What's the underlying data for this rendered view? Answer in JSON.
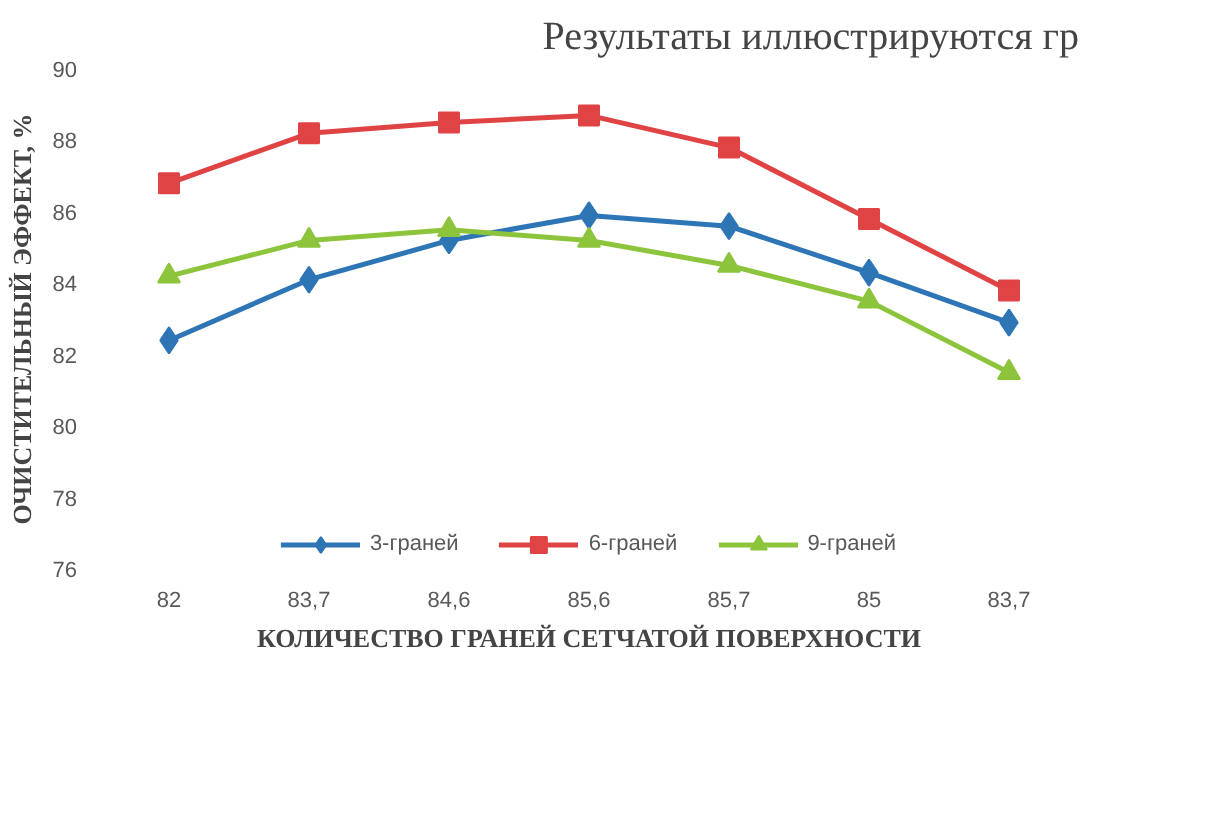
{
  "chart_data": {
    "type": "line",
    "annotations": [
      "Результаты иллюстрируются гр"
    ],
    "xlabel": "КОЛИЧЕСТВО ГРАНЕЙ СЕТЧАТОЙ ПОВЕРХНОСТИ",
    "ylabel": "ОЧИСТИТЕЛЬНЫЙ ЭФФЕКТ, %",
    "categories": [
      "82",
      "83,7",
      "84,6",
      "85,6",
      "85,7",
      "85",
      "83,7"
    ],
    "ylim": [
      76,
      90
    ],
    "yticks": [
      76,
      78,
      80,
      82,
      84,
      86,
      88,
      90
    ],
    "grid": false,
    "legend": "bottom",
    "series": [
      {
        "name": "3-граней",
        "color": "#2e75b6",
        "marker": "diamond",
        "values": [
          82.4,
          84.1,
          85.2,
          85.9,
          85.6,
          84.3,
          82.9
        ]
      },
      {
        "name": "6-граней",
        "color": "#e04343",
        "marker": "square",
        "values": [
          86.8,
          88.2,
          88.5,
          88.7,
          87.8,
          85.8,
          83.8
        ]
      },
      {
        "name": "9-граней",
        "color": "#8cc43c",
        "marker": "triangle",
        "values": [
          84.2,
          85.2,
          85.5,
          85.2,
          84.5,
          83.5,
          81.5
        ]
      }
    ]
  }
}
